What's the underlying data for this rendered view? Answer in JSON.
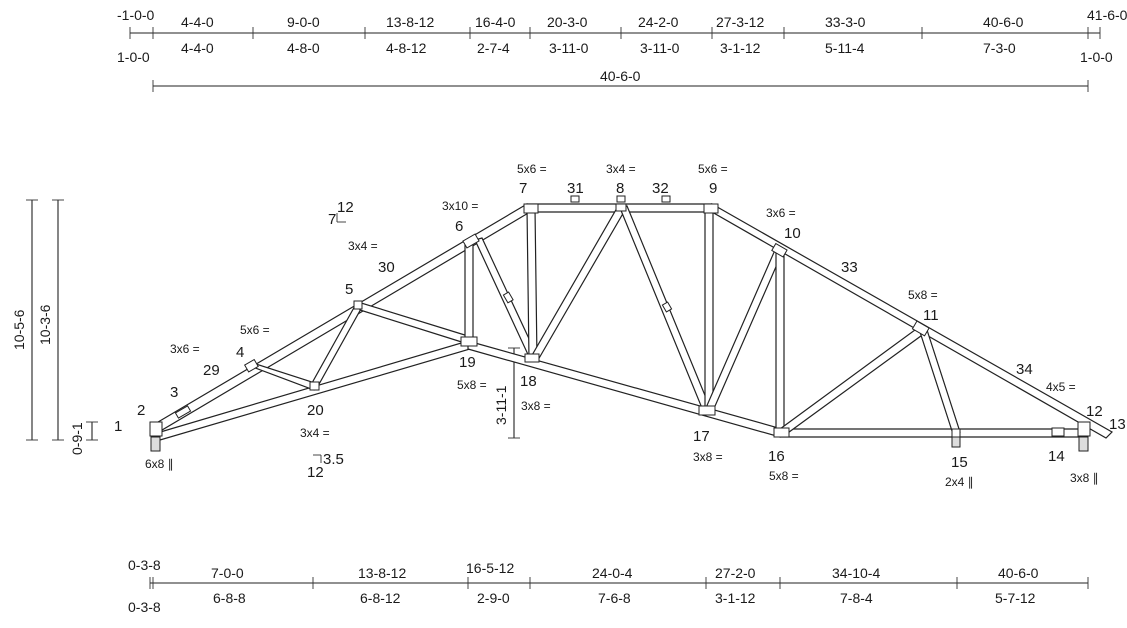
{
  "top_dims": {
    "upper": [
      "-1-0-0",
      "4-4-0",
      "9-0-0",
      "13-8-12",
      "16-4-0",
      "20-3-0",
      "24-2-0",
      "27-3-12",
      "33-3-0",
      "40-6-0",
      "41-6-0"
    ],
    "lower": [
      "1-0-0",
      "4-4-0",
      "4-8-0",
      "4-8-12",
      "2-7-4",
      "3-11-0",
      "3-11-0",
      "3-1-12",
      "5-11-4",
      "7-3-0",
      "1-0-0"
    ],
    "overall": "40-6-0"
  },
  "bottom_dims": {
    "upper": [
      "0-3-8",
      "7-0-0",
      "13-8-12",
      "16-5-12",
      "24-0-4",
      "27-2-0",
      "34-10-4",
      "40-6-0"
    ],
    "lower": [
      "0-3-8",
      "6-8-8",
      "6-8-12",
      "2-9-0",
      "7-6-8",
      "3-1-12",
      "7-8-4",
      "5-7-12"
    ]
  },
  "heights": {
    "overall": "10-5-6",
    "inner": "10-3-6",
    "heel": "0-9-1",
    "mid": "3-11-1"
  },
  "pitch": {
    "top_rise": "7",
    "top_run": "12",
    "bottom_rise": "3.5",
    "bottom_run": "12"
  },
  "joints": [
    "1",
    "2",
    "3",
    "4",
    "5",
    "6",
    "7",
    "8",
    "9",
    "10",
    "11",
    "12",
    "13",
    "14",
    "15",
    "16",
    "17",
    "18",
    "19",
    "20",
    "29",
    "30",
    "31",
    "32",
    "33",
    "34"
  ],
  "plates": {
    "j2": "6x8 ∥",
    "j4": "3x6 =",
    "j5": "5x6 =",
    "j30": "3x4 =",
    "j6": "3x10 =",
    "j7": "5x6 =",
    "j8": "3x4 =",
    "j9": "5x6 =",
    "j10": "3x6 =",
    "j11": "5x8 =",
    "j12": "4x5 =",
    "j13": "3x8 ∥",
    "j15": "2x4 ∥",
    "j16": "5x8 =",
    "j17": "3x8 =",
    "j18a": "5x8 =",
    "j18b": "3x8 =",
    "j20": "3x4 ="
  },
  "colors": {
    "line": "#222222",
    "background": "#ffffff"
  }
}
